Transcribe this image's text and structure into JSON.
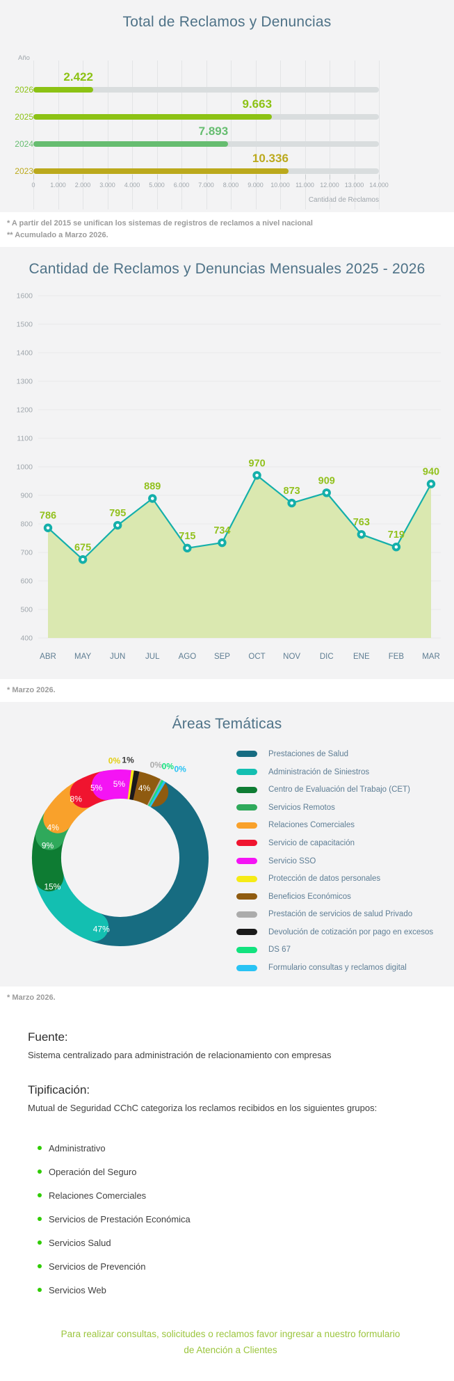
{
  "colors": {
    "background": "#F3F3F4",
    "card": "#FFFFFF",
    "title": "#4E7287",
    "note": "#9B9B9B",
    "axis": "#9FA6AC",
    "bullet": "#2FCC00",
    "footer_link": "#9BC53D"
  },
  "chart_data": [
    {
      "type": "bar",
      "orientation": "horizontal",
      "title": "Total de Reclamos y Denuncias",
      "ylabel": "Año",
      "xlabel": "Cantidad de Reclamos",
      "categories": [
        "2026",
        "2025",
        "2024",
        "2023"
      ],
      "values": [
        2422,
        9663,
        7893,
        10336
      ],
      "value_labels": [
        "2.422",
        "9.663",
        "7.893",
        "10.336"
      ],
      "bar_colors": [
        "#8CC214",
        "#8CC214",
        "#66BD70",
        "#BBA91C"
      ],
      "track_color": "#D9DDDE",
      "xlim": [
        0,
        14000
      ],
      "xtick_step": 1000,
      "xtick_labels": [
        "0",
        "1.000",
        "2.000",
        "3.000",
        "4.000",
        "5.000",
        "6.000",
        "7.000",
        "8.000",
        "9.000",
        "10.000",
        "11.000",
        "12.000",
        "13.000",
        "14.000"
      ],
      "grid": true
    },
    {
      "type": "area",
      "title": "Cantidad de Reclamos y Denuncias Mensuales 2025 - 2026",
      "categories": [
        "ABR",
        "MAY",
        "JUN",
        "JUL",
        "AGO",
        "SEP",
        "OCT",
        "NOV",
        "DIC",
        "ENE",
        "FEB",
        "MAR"
      ],
      "values": [
        786,
        675,
        795,
        889,
        715,
        734,
        970,
        873,
        909,
        763,
        719,
        940
      ],
      "ylim": [
        400,
        1600
      ],
      "ytick_step": 100,
      "grid": true,
      "line_color": "#14AFAA",
      "marker_color": "#14AFAA",
      "marker_center_color": "#FFFFFF",
      "area_color": "#DAE8B0",
      "value_label_color": "#92C11E",
      "axis_label_color": "#9FA6AC",
      "month_label_color": "#5E7D92"
    },
    {
      "type": "donut",
      "title": "Áreas Temáticas",
      "legend_position": "right",
      "slices": [
        {
          "label": "Prestaciones de Salud",
          "value": 47,
          "pct": "47%",
          "color": "#176C81",
          "sweep": 47
        },
        {
          "label": "Administración de Siniestros",
          "value": 15,
          "pct": "15%",
          "color": "#13BFB1",
          "sweep": 15
        },
        {
          "label": "Centro de Evaluación del Trabajo (CET)",
          "value": 9,
          "pct": "9%",
          "color": "#0E7C33",
          "sweep": 9
        },
        {
          "label": "Servicios Remotos",
          "value": 4,
          "pct": "4%",
          "color": "#2FA95B",
          "sweep": 4
        },
        {
          "label": "Relaciones Comerciales",
          "value": 8,
          "pct": "8%",
          "color": "#F9A12B",
          "sweep": 8
        },
        {
          "label": "Servicio de capacitación",
          "value": 5,
          "pct": "5%",
          "color": "#F0142F",
          "sweep": 5
        },
        {
          "label": "Servicio SSO",
          "value": 5,
          "pct": "5%",
          "color": "#F414F4",
          "sweep": 5
        },
        {
          "label": "Protección de datos personales",
          "value": 0,
          "pct": "0%",
          "color": "#F6EB16",
          "sweep": 0.5
        },
        {
          "label": "Beneficios Económicos",
          "value": 4,
          "pct": "4%",
          "color": "#8F5B10",
          "sweep": 4
        },
        {
          "label": "Prestación de servicios de salud Privado",
          "value": 0,
          "pct": "0%",
          "color": "#ABABAB",
          "sweep": 0.3
        },
        {
          "label": "Devolución de cotización por pago en excesos",
          "value": 1,
          "pct": "1%",
          "color": "#1A1A1A",
          "sweep": 1
        },
        {
          "label": "DS 67",
          "value": 0,
          "pct": "0%",
          "color": "#12E27E",
          "sweep": 0.35
        },
        {
          "label": "Formulario consultas y reclamos digital",
          "value": 0,
          "pct": "0%",
          "color": "#29C3F4",
          "sweep": 0.45
        }
      ]
    }
  ],
  "notes_bar": {
    "line1": "* A partir del 2015 se unifican los sistemas de registros de reclamos a nivel nacional",
    "line2": "** Acumulado a Marzo 2026."
  },
  "note_line": "* Marzo 2026.",
  "note_donut": "* Marzo 2026.",
  "fuente": {
    "heading": "Fuente:",
    "body": "Sistema centralizado para administración de relacionamiento con empresas"
  },
  "tipificacion": {
    "heading": "Tipificación:",
    "body": "Mutual de Seguridad CChC categoriza los reclamos recibidos en los siguientes grupos:",
    "items": [
      "Administrativo",
      "Operación del Seguro",
      "Relaciones Comerciales",
      "Servicios de Prestación Económica",
      "Servicios Salud",
      "Servicios de Prevención",
      "Servicios Web"
    ]
  },
  "footer": {
    "line1": "Para realizar consultas, solicitudes o reclamos favor ingresar a nuestro formulario",
    "line2": "de Atención a Clientes"
  }
}
